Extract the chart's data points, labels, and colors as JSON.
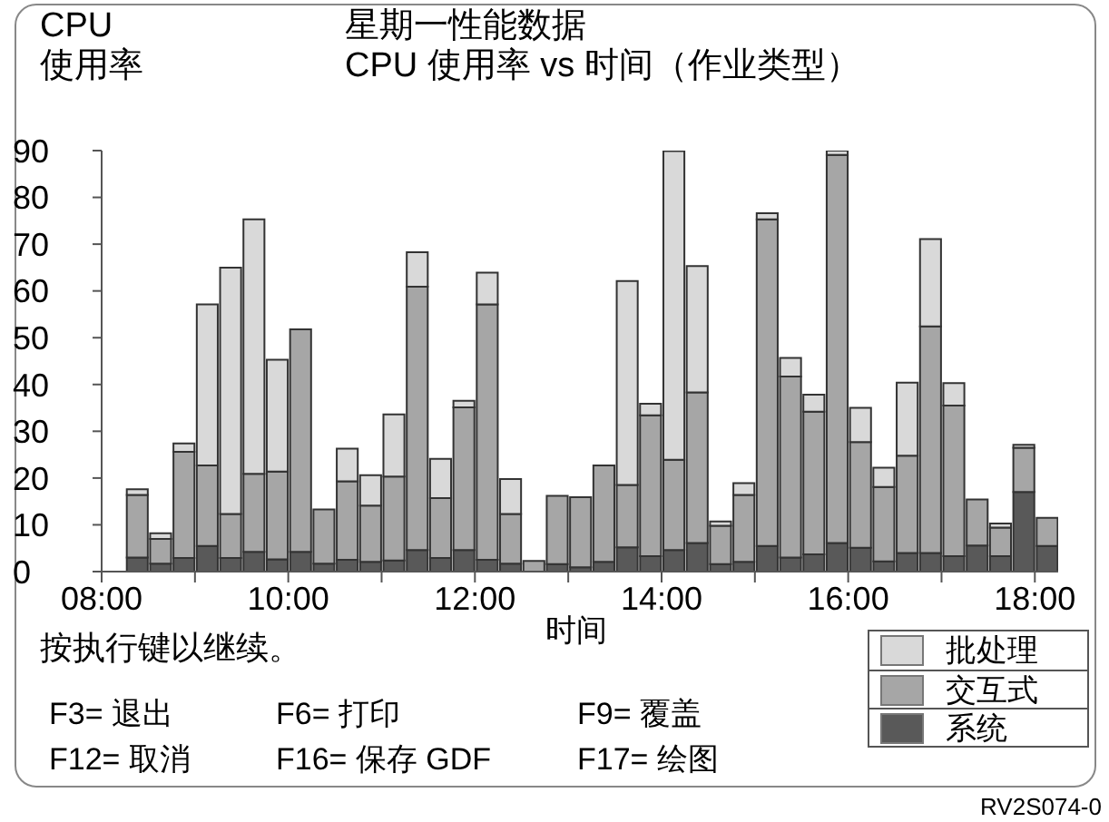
{
  "chart_data": {
    "type": "bar",
    "stacked": true,
    "title": "星期一性能数据",
    "subtitle": "CPU 使用率 vs 时间（作业类型）",
    "ylabel": "CPU\n使用率",
    "xlabel": "时间",
    "x": [
      8.375,
      8.625,
      8.875,
      9.125,
      9.375,
      9.625,
      9.875,
      10.125,
      10.375,
      10.625,
      10.875,
      11.125,
      11.375,
      11.625,
      11.875,
      12.125,
      12.375,
      12.625,
      12.875,
      13.125,
      13.375,
      13.625,
      13.875,
      14.125,
      14.375,
      14.625,
      14.875,
      15.125,
      15.375,
      15.625,
      15.875,
      16.125,
      16.375,
      16.625,
      16.875,
      17.125,
      17.375,
      17.625,
      17.875,
      18.125
    ],
    "series": [
      {
        "name": "系统",
        "color": "#595959",
        "values": [
          3,
          1.7,
          2.9,
          5.5,
          2.9,
          4.2,
          2.6,
          4.2,
          1.7,
          2.5,
          2.1,
          2.4,
          4.6,
          2.9,
          4.6,
          2.5,
          1.7,
          null,
          1.6,
          0.9,
          2.1,
          5.2,
          3.3,
          4.6,
          6.1,
          1.6,
          2.1,
          5.5,
          3,
          3.7,
          6.1,
          5.1,
          2.2,
          4,
          4,
          3.3,
          5.6,
          3.3,
          17,
          5.5
        ]
      },
      {
        "name": "交互式",
        "color": "#a6a6a6",
        "values": [
          13.4,
          5.3,
          22.7,
          17.2,
          9.4,
          16.7,
          18.8,
          47.6,
          11.6,
          16.8,
          12,
          17.9,
          56.3,
          12.8,
          30.5,
          54.6,
          10.6,
          2.3,
          14.6,
          15,
          20.6,
          13.3,
          30.1,
          19.3,
          32.2,
          8.2,
          14.3,
          69.8,
          38.7,
          30.5,
          83,
          22.6,
          15.9,
          20.8,
          48.4,
          32.2,
          9.8,
          6.1,
          9.5,
          6
        ]
      },
      {
        "name": "批处理",
        "color": "#d9d9d9",
        "values": [
          1.2,
          1.2,
          1.8,
          34.4,
          52.7,
          54.4,
          23.9,
          null,
          null,
          7,
          6.5,
          13.3,
          7.4,
          8.4,
          1.4,
          6.8,
          7.5,
          null,
          null,
          null,
          null,
          43.6,
          2.5,
          66,
          27,
          0.9,
          2.5,
          1.3,
          4,
          3.6,
          0.9,
          7.3,
          4.1,
          15.6,
          18.7,
          4.8,
          null,
          0.9,
          0.6,
          null
        ]
      }
    ],
    "xlim": [
      8,
      18.25
    ],
    "xticks": [
      {
        "value": 8,
        "label": "08:00"
      },
      {
        "value": 9,
        "label": null
      },
      {
        "value": 10,
        "label": "10:00"
      },
      {
        "value": 11,
        "label": null
      },
      {
        "value": 12,
        "label": "12:00"
      },
      {
        "value": 13,
        "label": null
      },
      {
        "value": 14,
        "label": "14:00"
      },
      {
        "value": 15,
        "label": null
      },
      {
        "value": 16,
        "label": "16:00"
      },
      {
        "value": 17,
        "label": null
      },
      {
        "value": 18,
        "label": "18:00"
      }
    ],
    "ylim": [
      0,
      90
    ],
    "yticks": [
      0,
      10,
      20,
      30,
      40,
      50,
      60,
      70,
      80,
      90
    ],
    "grid": false,
    "legend": "bottom right",
    "annotations": [
      "按执行键以继续。",
      "F3= 退出",
      "F6= 打印",
      "F9= 覆盖",
      "F12= 取消",
      "F16= 保存 GDF",
      "F17= 绘图",
      "RV2S074-0"
    ]
  }
}
